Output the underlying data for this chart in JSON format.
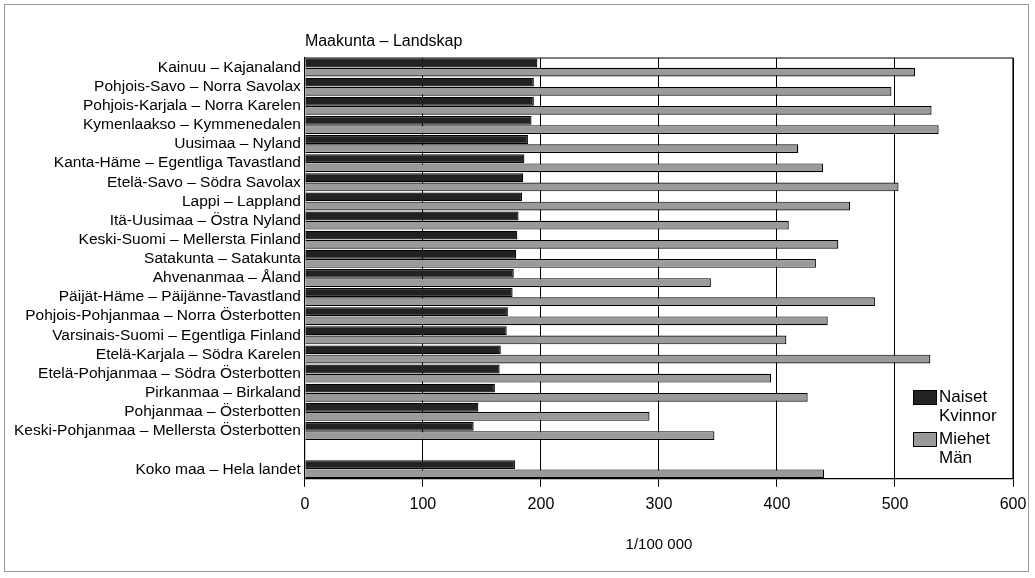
{
  "chart_data": {
    "type": "bar",
    "orientation": "horizontal",
    "title": "Maakunta – Landskap",
    "xlabel": "1/100 000",
    "categories": [
      "Kainuu – Kajanaland",
      "Pohjois-Savo – Norra Savolax",
      "Pohjois-Karjala – Norra Karelen",
      "Kymenlaakso – Kymmenedalen",
      "Uusimaa – Nyland",
      "Kanta-Häme – Egentliga Tavastland",
      "Etelä-Savo – Södra Savolax",
      "Lappi – Lappland",
      "Itä-Uusimaa – Östra Nyland",
      "Keski-Suomi – Mellersta Finland",
      "Satakunta – Satakunta",
      "Ahvenanmaa – Åland",
      "Päijät-Häme – Päijänne-Tavastland",
      "Pohjois-Pohjanmaa – Norra Österbotten",
      "Varsinais-Suomi – Egentliga Finland",
      "Etelä-Karjala – Södra Karelen",
      "Etelä-Pohjanmaa – Södra Österbotten",
      "Pirkanmaa – Birkaland",
      "Pohjanmaa – Österbotten",
      "Keski-Pohjanmaa – Mellersta Österbotten",
      null,
      "Koko maa – Hela landet"
    ],
    "series": [
      {
        "name": "Naiset Kvinnor",
        "color": "#222222",
        "values": [
          197,
          194,
          194,
          192,
          189,
          186,
          185,
          184,
          181,
          180,
          179,
          177,
          176,
          172,
          171,
          166,
          165,
          161,
          147,
          143,
          null,
          178
        ]
      },
      {
        "name": "Miehet Män",
        "color": "#9a9a9a",
        "values": [
          517,
          497,
          531,
          537,
          418,
          439,
          503,
          462,
          410,
          452,
          433,
          344,
          483,
          443,
          408,
          530,
          395,
          426,
          292,
          347,
          null,
          440
        ]
      }
    ],
    "xlim": [
      0,
      600
    ],
    "xticks": [
      0,
      100,
      200,
      300,
      400,
      500,
      600
    ],
    "grid": "x",
    "legend": "bottom right"
  }
}
